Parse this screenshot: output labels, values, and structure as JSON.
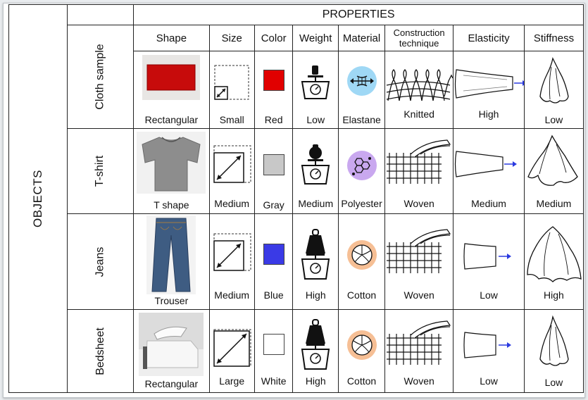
{
  "title_properties": "PROPERTIES",
  "title_objects": "OBJECTS",
  "columns": [
    "Shape",
    "Size",
    "Color",
    "Weight",
    "Material",
    "Construction technique",
    "Elasticity",
    "Stiffness"
  ],
  "rows": [
    {
      "name": "Cloth sample",
      "shape": "Rectangular",
      "size": "Small",
      "color": "Red",
      "weight": "Low",
      "material": "Elastane",
      "construction": "Knitted",
      "elasticity": "High",
      "stiffness": "Low",
      "swatch_color": "#e10000"
    },
    {
      "name": "T-shirt",
      "shape": "T shape",
      "size": "Medium",
      "color": "Gray",
      "weight": "Medium",
      "material": "Polyester",
      "construction": "Woven",
      "elasticity": "Medium",
      "stiffness": "Medium",
      "swatch_color": "#c8c8c8"
    },
    {
      "name": "Jeans",
      "shape": "Trouser",
      "size": "Medium",
      "color": "Blue",
      "weight": "High",
      "material": "Cotton",
      "construction": "Woven",
      "elasticity": "Low",
      "stiffness": "High",
      "swatch_color": "#3a3ae6"
    },
    {
      "name": "Bedsheet",
      "shape": "Rectangular",
      "size": "Large",
      "color": "White",
      "weight": "High",
      "material": "Cotton",
      "construction": "Woven",
      "elasticity": "Low",
      "stiffness": "Low",
      "swatch_color": "#ffffff"
    }
  ],
  "icons": {
    "weight": "kettlebell-scale-icon",
    "elastane": "elastane-icon",
    "polyester": "polyester-molecule-icon",
    "cotton": "cotton-flower-icon",
    "knitted": "knit-stitch-icon",
    "woven": "woven-weave-icon",
    "elasticity": "stretch-arrow-icon",
    "stiffness": "draped-cloth-icon"
  },
  "colors": {
    "arrow": "#2a3ae0",
    "elastane_bg": "#9fd8f5",
    "polyester_bg": "#c9a8ef",
    "cotton_bg": "#f6bf95"
  }
}
